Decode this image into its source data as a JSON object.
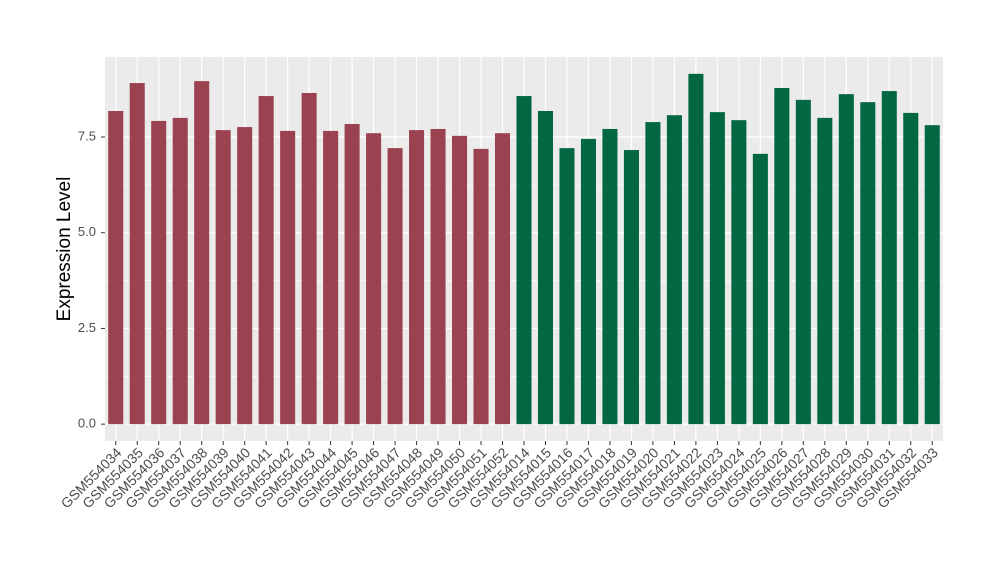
{
  "chart_data": {
    "type": "bar",
    "ylabel": "Expression Level",
    "categories": [
      "GSM554034",
      "GSM554035",
      "GSM554036",
      "GSM554037",
      "GSM554038",
      "GSM554039",
      "GSM554040",
      "GSM554041",
      "GSM554042",
      "GSM554043",
      "GSM554044",
      "GSM554045",
      "GSM554046",
      "GSM554047",
      "GSM554048",
      "GSM554049",
      "GSM554050",
      "GSM554051",
      "GSM554052",
      "GSM554014",
      "GSM554015",
      "GSM554016",
      "GSM554017",
      "GSM554018",
      "GSM554019",
      "GSM554020",
      "GSM554021",
      "GSM554022",
      "GSM554023",
      "GSM554024",
      "GSM554025",
      "GSM554026",
      "GSM554027",
      "GSM554028",
      "GSM554029",
      "GSM554030",
      "GSM554031",
      "GSM554032",
      "GSM554033"
    ],
    "values": [
      8.18,
      8.91,
      7.92,
      8.0,
      8.96,
      7.68,
      7.76,
      8.57,
      7.66,
      8.65,
      7.66,
      7.84,
      7.6,
      7.21,
      7.68,
      7.71,
      7.53,
      7.19,
      7.6,
      8.57,
      8.18,
      7.21,
      7.45,
      7.71,
      7.16,
      7.89,
      8.07,
      9.15,
      8.15,
      7.94,
      7.06,
      8.78,
      8.47,
      8.0,
      8.62,
      8.41,
      8.7,
      8.13,
      7.81
    ],
    "colors": [
      "#9b4250",
      "#9b4250",
      "#9b4250",
      "#9b4250",
      "#9b4250",
      "#9b4250",
      "#9b4250",
      "#9b4250",
      "#9b4250",
      "#9b4250",
      "#9b4250",
      "#9b4250",
      "#9b4250",
      "#9b4250",
      "#9b4250",
      "#9b4250",
      "#9b4250",
      "#9b4250",
      "#9b4250",
      "#036841",
      "#036841",
      "#036841",
      "#036841",
      "#036841",
      "#036841",
      "#036841",
      "#036841",
      "#036841",
      "#036841",
      "#036841",
      "#036841",
      "#036841",
      "#036841",
      "#036841",
      "#036841",
      "#036841",
      "#036841",
      "#036841",
      "#036841"
    ],
    "ylim": [
      -0.44,
      9.59
    ],
    "yticks": [
      {
        "value": 0,
        "label": "0.0"
      },
      2.5,
      {
        "value": 5,
        "label": "5.0"
      },
      7.5
    ],
    "grid": true
  }
}
